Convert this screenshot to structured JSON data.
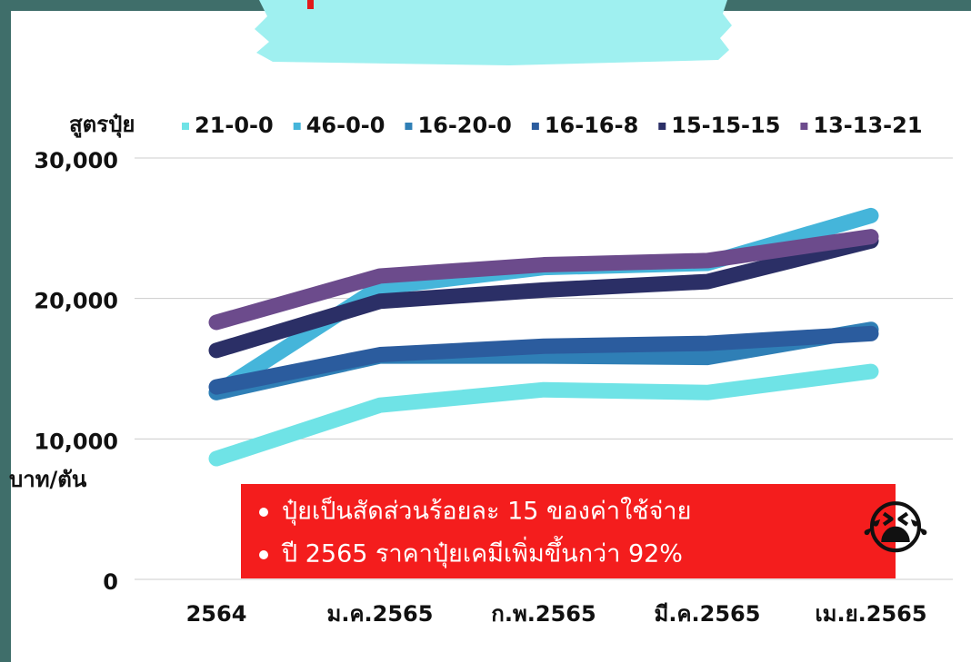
{
  "chart_data": {
    "type": "line",
    "legend_title": "สูตรปุ๋ย",
    "y_label": "บาท/ตัน",
    "categories": [
      "2564",
      "ม.ค.2565",
      "ก.พ.2565",
      "มี.ค.2565",
      "เม.ย.2565"
    ],
    "series": [
      {
        "name": "21-0-0",
        "color": "#6fe3e6",
        "values": [
          8600,
          12400,
          13500,
          13300,
          14800
        ]
      },
      {
        "name": "46-0-0",
        "color": "#45b5da",
        "values": [
          13300,
          20800,
          22200,
          22500,
          25900
        ]
      },
      {
        "name": "16-20-0",
        "color": "#2f7fb6",
        "values": [
          13300,
          15900,
          15900,
          15800,
          17800
        ]
      },
      {
        "name": "16-16-8",
        "color": "#2b5c9e",
        "values": [
          13700,
          16000,
          16600,
          16800,
          17500
        ]
      },
      {
        "name": "15-15-15",
        "color": "#2b2f66",
        "values": [
          16300,
          19800,
          20600,
          21200,
          24100
        ]
      },
      {
        "name": "13-13-21",
        "color": "#6c4b8c",
        "values": [
          18300,
          21600,
          22400,
          22700,
          24400
        ]
      }
    ],
    "ylim": [
      0,
      30000
    ],
    "yticks": [
      0,
      {
        "value": 10000,
        "label": "10,000"
      },
      {
        "value": 20000,
        "label": "20,000"
      },
      {
        "value": 30000,
        "label": "30,000"
      }
    ],
    "grid": true,
    "annotation": {
      "lines": [
        "ปุ๋ยเป็นสัดส่วนร้อยละ 15 ของค่าใช้จ่าย",
        "ปี 2565 ราคาปุ๋ยเคมีเพิ่มขึ้นกว่า 92%"
      ],
      "emoji": "😭"
    }
  }
}
